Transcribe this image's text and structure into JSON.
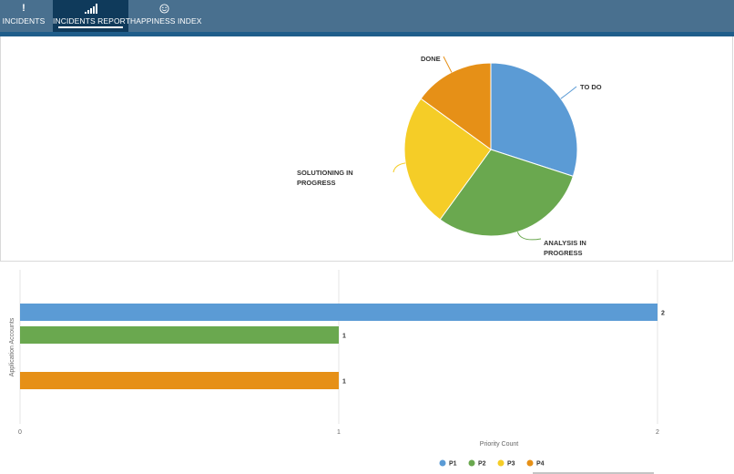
{
  "nav": {
    "tabs": [
      {
        "label": "INCIDENTS",
        "icon": "exclamation-icon"
      },
      {
        "label": "INCIDENTS REPORT",
        "icon": "signal-bars-icon",
        "active": true
      },
      {
        "label": "HAPPINESS INDEX",
        "icon": "smiley-icon"
      }
    ]
  },
  "colors": {
    "nav_bg": "#49708f",
    "nav_active": "#0f3a5b",
    "to_do": "#5b9bd5",
    "analysis": "#6aa84f",
    "solutioning": "#f5cd27",
    "done": "#e69017"
  },
  "chart_data": [
    {
      "type": "pie",
      "slices": [
        {
          "label": "TO DO",
          "value": 30,
          "color": "#5b9bd5"
        },
        {
          "label": "ANALYSIS IN PROGRESS",
          "value": 30,
          "color": "#6aa84f"
        },
        {
          "label": "SOLUTIONING IN PROGRESS",
          "value": 25,
          "color": "#f5cd27"
        },
        {
          "label": "DONE",
          "value": 15,
          "color": "#e69017"
        }
      ]
    },
    {
      "type": "bar",
      "orientation": "horizontal",
      "ylabel": "Application Accounts",
      "xlabel": "Priority Count",
      "xlim": [
        0,
        2
      ],
      "xticks": [
        "0",
        "1",
        "2"
      ],
      "grid": true,
      "legend_position": "bottom",
      "series": [
        {
          "name": "P1",
          "value": 2,
          "label": "2",
          "color": "#5b9bd5"
        },
        {
          "name": "P2",
          "value": 1,
          "label": "1",
          "color": "#6aa84f"
        },
        {
          "name": "P3",
          "value": 0,
          "label": "",
          "color": "#f5cd27"
        },
        {
          "name": "P4",
          "value": 1,
          "label": "1",
          "color": "#e69017"
        }
      ]
    }
  ]
}
